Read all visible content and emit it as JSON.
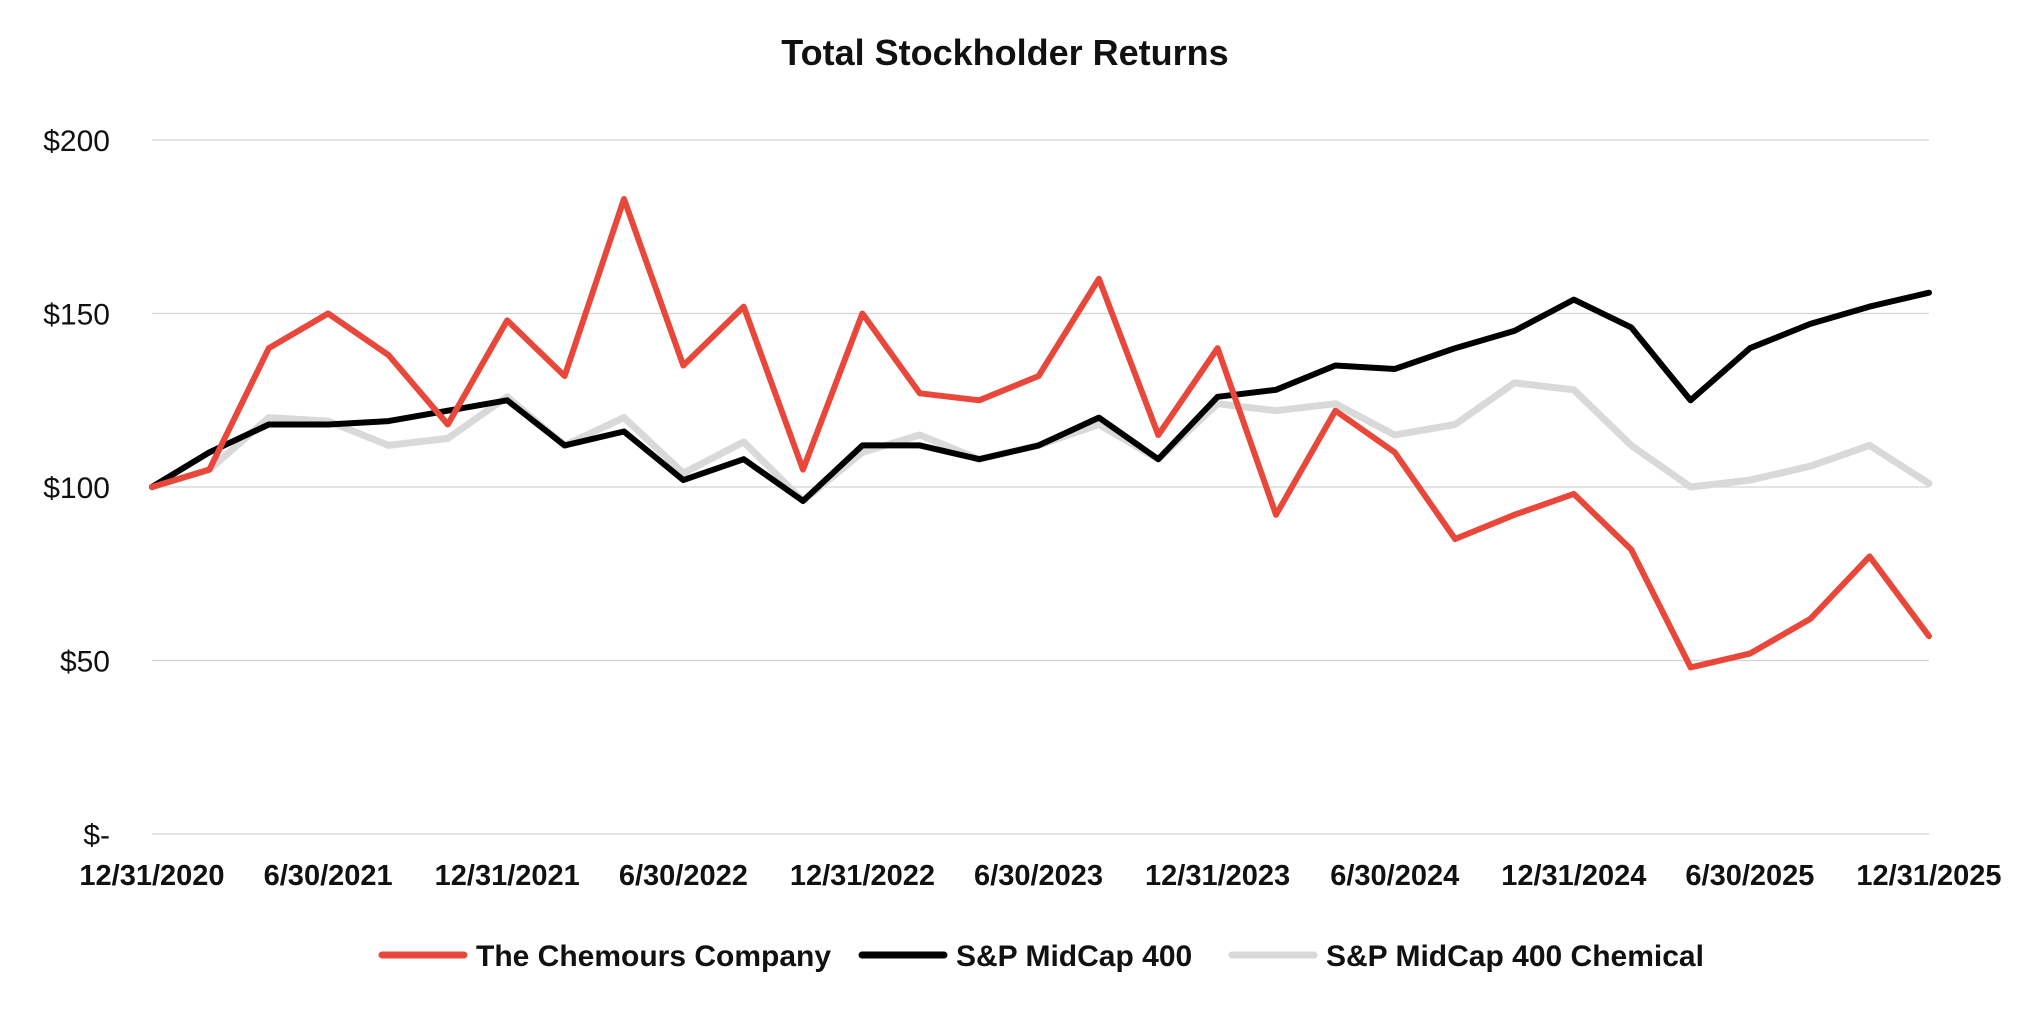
{
  "chart_data": {
    "type": "line",
    "title": "Total Stockholder Returns",
    "xlabel": "",
    "ylabel": "",
    "ylim": [
      0,
      200
    ],
    "grid": true,
    "legend_position": "bottom",
    "y_ticks": [
      {
        "value": 0,
        "label": "$-"
      },
      {
        "value": 50,
        "label": "$50"
      },
      {
        "value": 100,
        "label": "$100"
      },
      {
        "value": 150,
        "label": "$150"
      },
      {
        "value": 200,
        "label": "$200"
      }
    ],
    "x_ticks": [
      "12/31/2020",
      "6/30/2021",
      "12/31/2021",
      "6/30/2022",
      "12/31/2022",
      "6/30/2023",
      "12/31/2023",
      "6/30/2024",
      "12/31/2024",
      "6/30/2025",
      "12/31/2025"
    ],
    "x": [
      "12/31/2020",
      "2/28/2021",
      "4/30/2021",
      "6/30/2021",
      "8/31/2021",
      "10/31/2021",
      "12/31/2021",
      "2/28/2022",
      "4/30/2022",
      "6/30/2022",
      "8/31/2022",
      "10/31/2022",
      "12/31/2022",
      "2/28/2023",
      "4/30/2023",
      "6/30/2023",
      "8/31/2023",
      "10/31/2023",
      "12/31/2023",
      "2/29/2024",
      "4/30/2024",
      "6/30/2024",
      "8/31/2024",
      "10/31/2024",
      "12/31/2024",
      "2/28/2025",
      "4/30/2025",
      "6/30/2025",
      "8/31/2025",
      "10/31/2025",
      "12/31/2025"
    ],
    "series": [
      {
        "name": "The Chemours Company",
        "color": "#e8473a",
        "values": [
          100,
          105,
          140,
          150,
          138,
          118,
          148,
          132,
          183,
          135,
          152,
          105,
          150,
          127,
          125,
          132,
          160,
          115,
          140,
          92,
          122,
          110,
          85,
          92,
          98,
          82,
          48,
          52,
          62,
          80,
          57
        ]
      },
      {
        "name": "S&P MidCap 400",
        "color": "#000000",
        "values": [
          100,
          110,
          118,
          118,
          119,
          122,
          125,
          112,
          116,
          102,
          108,
          96,
          112,
          112,
          108,
          112,
          120,
          108,
          126,
          128,
          135,
          134,
          140,
          145,
          154,
          146,
          125,
          140,
          147,
          152,
          156
        ]
      },
      {
        "name": "S&P MidCap 400 Chemical",
        "color": "#d9d9d9",
        "values": [
          100,
          105,
          120,
          119,
          112,
          114,
          126,
          112,
          120,
          104,
          113,
          96,
          110,
          115,
          108,
          112,
          118,
          108,
          124,
          122,
          124,
          115,
          118,
          130,
          128,
          112,
          100,
          102,
          106,
          112,
          101
        ]
      }
    ]
  }
}
